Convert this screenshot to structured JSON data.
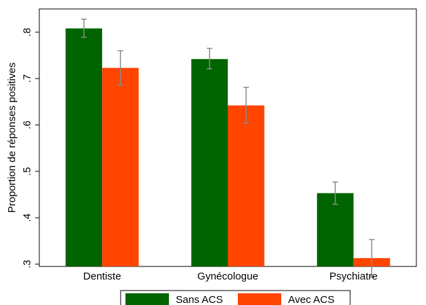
{
  "chart_data": {
    "type": "bar",
    "ylabel": "Proportion de réponses positives",
    "ylim": [
      0.295,
      0.85
    ],
    "yticks": [
      {
        "value": 0.3,
        "label": ".3"
      },
      {
        "value": 0.4,
        "label": ".4"
      },
      {
        "value": 0.5,
        "label": ".5"
      },
      {
        "value": 0.6,
        "label": ".6"
      },
      {
        "value": 0.7,
        "label": ".7"
      },
      {
        "value": 0.8,
        "label": ".8"
      }
    ],
    "categories": [
      "Dentiste",
      "Gynécologue",
      "Psychiatre"
    ],
    "series": [
      {
        "name": "Sans ACS",
        "color": "#006400",
        "values": [
          0.808,
          0.742,
          0.453
        ],
        "ci_low": [
          0.789,
          0.721,
          0.429
        ],
        "ci_high": [
          0.828,
          0.765,
          0.477
        ]
      },
      {
        "name": "Avec ACS",
        "color": "#ff4500",
        "values": [
          0.723,
          0.642,
          0.313
        ],
        "ci_low": [
          0.686,
          0.604,
          0.272
        ],
        "ci_high": [
          0.76,
          0.681,
          0.353
        ]
      }
    ],
    "error_bar_color": "#8a8a8a",
    "grid": false,
    "legend_position": "bottom"
  }
}
